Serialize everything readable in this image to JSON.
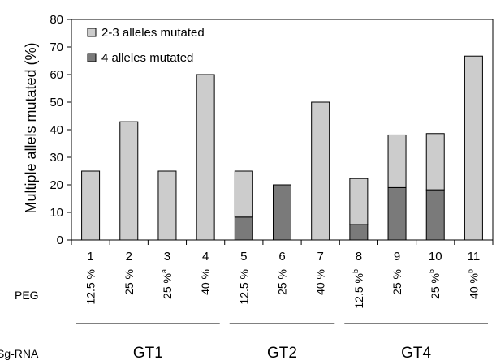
{
  "chart_data": {
    "type": "bar",
    "stacked": true,
    "ylabel": "Multiple allels mutated (%)",
    "ylim": [
      0,
      80
    ],
    "yticks": [
      0,
      10,
      20,
      30,
      40,
      50,
      60,
      70,
      80
    ],
    "categories": [
      "1",
      "2",
      "3",
      "4",
      "5",
      "6",
      "7",
      "8",
      "9",
      "10",
      "11"
    ],
    "series": [
      {
        "name": "4 alleles mutated",
        "color": "#7a7a7a",
        "values": [
          0,
          0,
          0,
          0,
          8.3,
          20,
          0,
          5.6,
          19,
          18.2,
          0
        ]
      },
      {
        "name": "2-3 alleles mutated",
        "color": "#cccccc",
        "values": [
          25,
          42.9,
          25,
          60,
          16.7,
          0,
          50,
          16.7,
          19.1,
          20.4,
          66.7
        ]
      }
    ],
    "legend": {
      "placement": "top-left",
      "order": [
        "2-3 alleles mutated",
        "4 alleles mutated"
      ]
    },
    "row_labels": {
      "peg": "PEG",
      "sgrna": "Sg-RNA"
    },
    "peg_values": [
      "12.5 %",
      "25 %",
      "25 %",
      "40 %",
      "12.5 %",
      "25 %",
      "40 %",
      "12.5 %",
      "25 %",
      "25 %",
      "40 %"
    ],
    "peg_superscripts": [
      "",
      "",
      "a",
      "",
      "",
      "",
      "",
      "b",
      "",
      "b",
      "b"
    ],
    "groups": [
      {
        "label": "GT1",
        "from": 0,
        "to": 3
      },
      {
        "label": "GT2",
        "from": 4,
        "to": 6
      },
      {
        "label": "GT4",
        "from": 7,
        "to": 10
      }
    ]
  }
}
